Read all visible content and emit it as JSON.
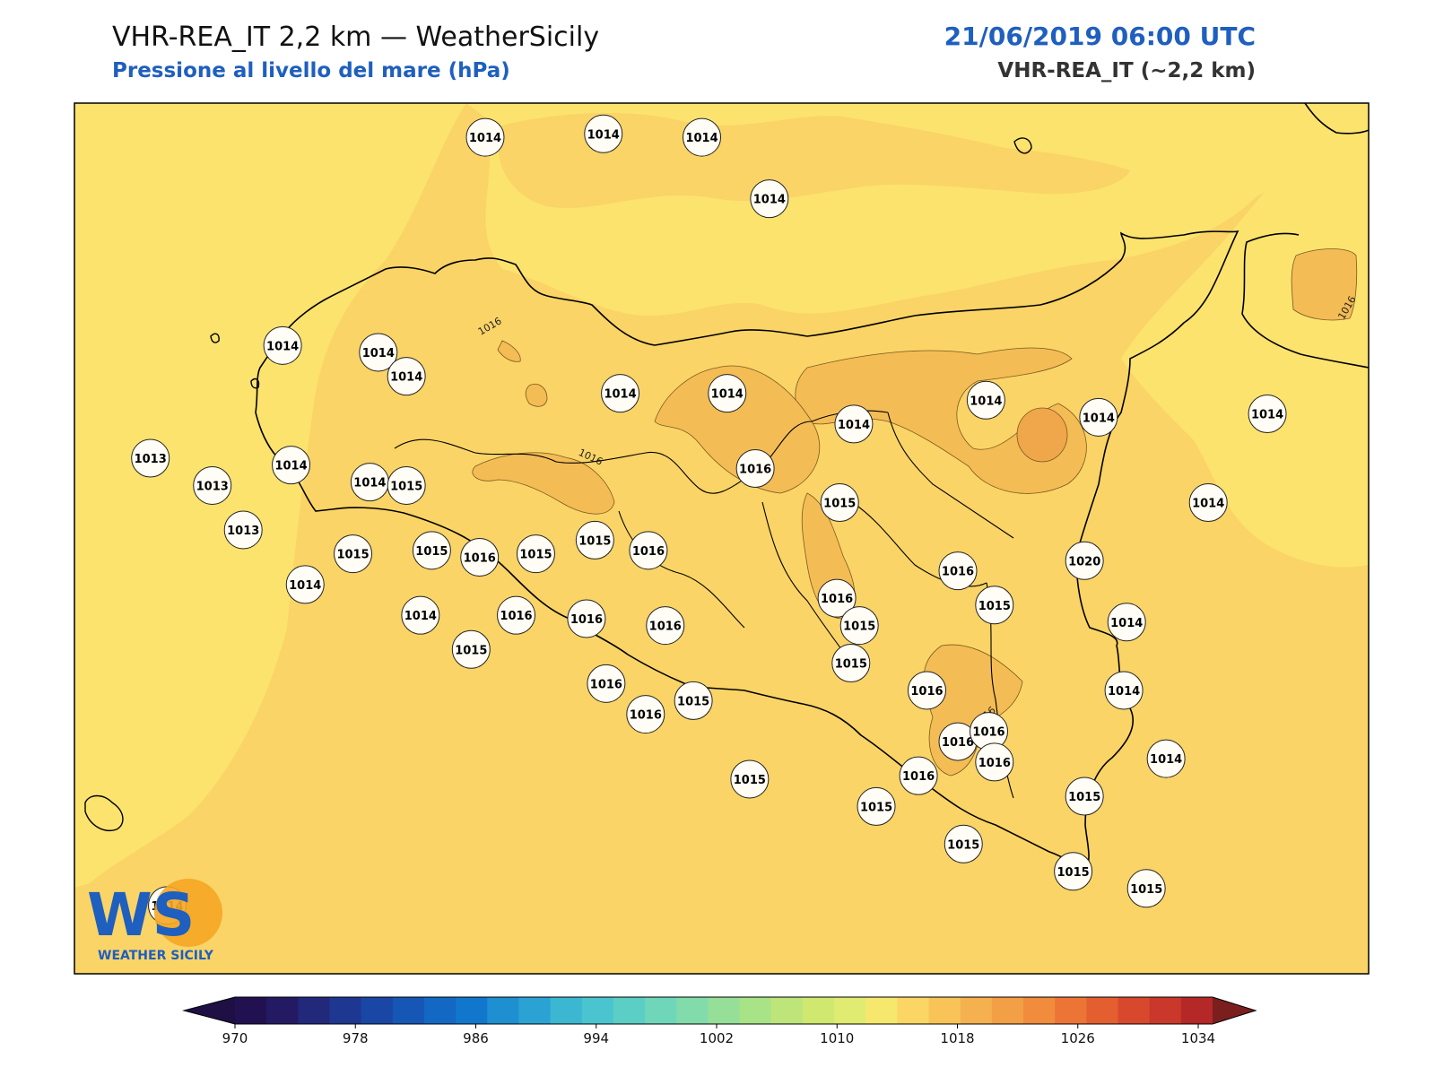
{
  "header": {
    "title": "VHR-REA_IT 2,2 km — WeatherSicily",
    "subtitle": "Pressione al livello del mare (hPa)",
    "datetime": "21/06/2019 06:00 UTC",
    "model": "VHR-REA_IT (~2,2 km)"
  },
  "map": {
    "background_colors": {
      "sea_light": "#fbe36e",
      "land_mid": "#fad466",
      "high": "#f4bc55",
      "peak": "#f0a64a"
    },
    "contour_label": "1016",
    "stations": [
      {
        "v": "1014",
        "lon": 12.66,
        "lat": 39.05
      },
      {
        "v": "1014",
        "lon": 13.08,
        "lat": 39.06
      },
      {
        "v": "1014",
        "lon": 13.43,
        "lat": 39.05
      },
      {
        "v": "1014",
        "lon": 13.67,
        "lat": 38.87
      },
      {
        "v": "1014",
        "lon": 12.28,
        "lat": 38.42
      },
      {
        "v": "1014",
        "lon": 11.94,
        "lat": 38.44
      },
      {
        "v": "1014",
        "lon": 12.38,
        "lat": 38.35
      },
      {
        "v": "1014",
        "lon": 13.14,
        "lat": 38.3
      },
      {
        "v": "1014",
        "lon": 13.52,
        "lat": 38.3
      },
      {
        "v": "1014",
        "lon": 13.97,
        "lat": 38.21
      },
      {
        "v": "1014",
        "lon": 14.44,
        "lat": 38.28
      },
      {
        "v": "1014",
        "lon": 14.84,
        "lat": 38.23
      },
      {
        "v": "1014",
        "lon": 15.44,
        "lat": 38.24
      },
      {
        "v": "1013",
        "lon": 11.47,
        "lat": 38.11
      },
      {
        "v": "1013",
        "lon": 11.69,
        "lat": 38.03
      },
      {
        "v": "1014",
        "lon": 11.97,
        "lat": 38.09
      },
      {
        "v": "1014",
        "lon": 12.25,
        "lat": 38.04
      },
      {
        "v": "1015",
        "lon": 12.38,
        "lat": 38.03
      },
      {
        "v": "1016",
        "lon": 13.62,
        "lat": 38.08
      },
      {
        "v": "1015",
        "lon": 13.92,
        "lat": 37.98
      },
      {
        "v": "1015",
        "lon": 13.05,
        "lat": 37.87
      },
      {
        "v": "1014",
        "lon": 15.23,
        "lat": 37.98
      },
      {
        "v": "1013",
        "lon": 11.8,
        "lat": 37.9
      },
      {
        "v": "1015",
        "lon": 12.19,
        "lat": 37.83
      },
      {
        "v": "1015",
        "lon": 12.47,
        "lat": 37.84
      },
      {
        "v": "1016",
        "lon": 12.64,
        "lat": 37.82
      },
      {
        "v": "1015",
        "lon": 12.84,
        "lat": 37.83
      },
      {
        "v": "1016",
        "lon": 13.24,
        "lat": 37.84
      },
      {
        "v": "1020",
        "lon": 14.79,
        "lat": 37.81
      },
      {
        "v": "1016",
        "lon": 14.34,
        "lat": 37.78
      },
      {
        "v": "1014",
        "lon": 12.02,
        "lat": 37.74
      },
      {
        "v": "1016",
        "lon": 13.91,
        "lat": 37.7
      },
      {
        "v": "1015",
        "lon": 14.47,
        "lat": 37.68
      },
      {
        "v": "1016",
        "lon": 12.77,
        "lat": 37.65
      },
      {
        "v": "1014",
        "lon": 12.43,
        "lat": 37.65
      },
      {
        "v": "1016",
        "lon": 13.02,
        "lat": 37.64
      },
      {
        "v": "1016",
        "lon": 13.3,
        "lat": 37.62
      },
      {
        "v": "1015",
        "lon": 13.99,
        "lat": 37.62
      },
      {
        "v": "1014",
        "lon": 14.94,
        "lat": 37.63
      },
      {
        "v": "1015",
        "lon": 12.61,
        "lat": 37.55
      },
      {
        "v": "1015",
        "lon": 13.96,
        "lat": 37.51
      },
      {
        "v": "1016",
        "lon": 13.09,
        "lat": 37.45
      },
      {
        "v": "1015",
        "lon": 13.4,
        "lat": 37.4
      },
      {
        "v": "1016",
        "lon": 14.23,
        "lat": 37.43
      },
      {
        "v": "1014",
        "lon": 14.93,
        "lat": 37.43
      },
      {
        "v": "1016",
        "lon": 13.23,
        "lat": 37.36
      },
      {
        "v": "1016",
        "lon": 14.34,
        "lat": 37.28
      },
      {
        "v": "1016",
        "lon": 14.45,
        "lat": 37.31
      },
      {
        "v": "1015",
        "lon": 13.6,
        "lat": 37.17
      },
      {
        "v": "1015",
        "lon": 14.05,
        "lat": 37.09
      },
      {
        "v": "1016",
        "lon": 14.2,
        "lat": 37.18
      },
      {
        "v": "1014",
        "lon": 15.08,
        "lat": 37.23
      },
      {
        "v": "1016",
        "lon": 14.47,
        "lat": 37.22
      },
      {
        "v": "1015",
        "lon": 14.79,
        "lat": 37.12
      },
      {
        "v": "1014",
        "lon": 11.53,
        "lat": 36.8
      },
      {
        "v": "1015",
        "lon": 14.36,
        "lat": 36.98
      },
      {
        "v": "1015",
        "lon": 14.75,
        "lat": 36.9
      },
      {
        "v": "1015",
        "lon": 15.01,
        "lat": 36.85
      }
    ]
  },
  "colorbar": {
    "colors": [
      "#221150",
      "#241a63",
      "#22287a",
      "#1e3790",
      "#1a47a6",
      "#1656b4",
      "#1368c4",
      "#1177cc",
      "#1e8fd0",
      "#2aa3d4",
      "#3bb7d2",
      "#4ac5cf",
      "#5bcec6",
      "#6fd6b9",
      "#82dbaa",
      "#96df98",
      "#a9e387",
      "#bde57a",
      "#d0e870",
      "#e0eb72",
      "#f6e86c",
      "#fbd664",
      "#f8c458",
      "#f5b14f",
      "#f39f45",
      "#f08c3c",
      "#ec7535",
      "#e45f30",
      "#d8482c",
      "#c9382a",
      "#b52828"
    ],
    "tick_labels": [
      "970",
      "978",
      "986",
      "994",
      "1002",
      "1010",
      "1018",
      "1026",
      "1034"
    ],
    "under_color": "#1e0f45",
    "over_color": "#7a1e1e"
  },
  "logo": {
    "mark": "WS",
    "text": "WEATHER SICILY"
  }
}
